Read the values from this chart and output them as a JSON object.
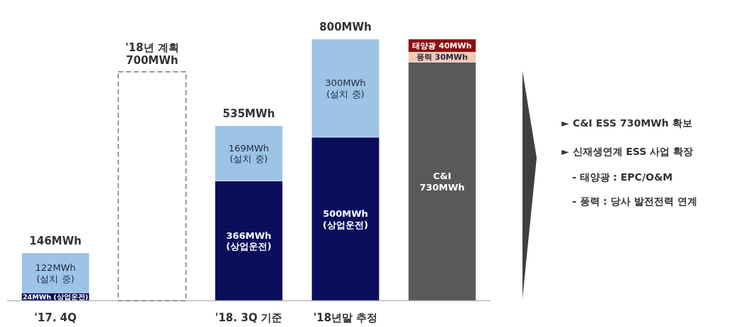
{
  "chart_data": {
    "type": "bar",
    "stacked": true,
    "data_labels": true,
    "categories": [
      "'17. 4Q",
      null,
      "'18. 3Q 기준",
      "'18년말 추정",
      null
    ],
    "series": [
      {
        "color": "#0b0e5c",
        "values": [
          24,
          null,
          366,
          500,
          null
        ],
        "value_labels": [
          "24MWh\n(상업운전)",
          null,
          "366MWh\n(상업운전)",
          "500MWh\n(상업운전)",
          null
        ]
      },
      {
        "color": "#9dc3e6",
        "values": [
          122,
          null,
          169,
          300,
          null
        ],
        "value_labels": [
          "122MWh\n(설치 중)",
          null,
          "169MWh\n(설치 중)",
          "300MWh\n(설치 중)",
          null
        ]
      },
      {
        "color": "#ffffff",
        "line_style": "dashed",
        "values": [
          null,
          700,
          null,
          null,
          null
        ],
        "value_labels": [
          null,
          null,
          null,
          null,
          null
        ]
      },
      {
        "color": "#595959",
        "values": [
          null,
          null,
          null,
          null,
          730
        ],
        "value_labels": [
          null,
          null,
          null,
          null,
          "C&I\n730MWh"
        ]
      },
      {
        "color": "#f4c7b8",
        "values": [
          null,
          null,
          null,
          null,
          30
        ],
        "value_labels": [
          null,
          null,
          null,
          null,
          "풍력\n30MWh"
        ]
      },
      {
        "color": "#8b0f0f",
        "values": [
          null,
          null,
          null,
          null,
          40
        ],
        "value_labels": [
          null,
          null,
          null,
          null,
          "태양광\n40MWh"
        ]
      }
    ],
    "totals": [
      "146MWh",
      "'18년 계획\n700MWh",
      "535MWh",
      "800MWh",
      null
    ],
    "annotations": [
      "► C&I ESS 730MWh 확보",
      "► 신재생연계 ESS 사업 확장",
      "- 태양광 : EPC/O&M",
      "- 풍력 : 당사 발전전력 연계"
    ]
  }
}
